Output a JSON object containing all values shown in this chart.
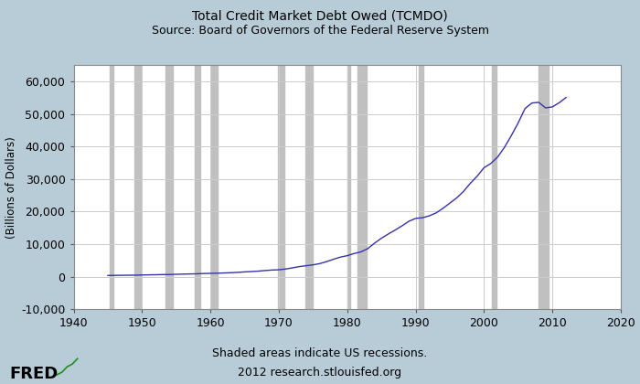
{
  "title_line1": "Total Credit Market Debt Owed (TCMDO)",
  "title_line2": "Source: Board of Governors of the Federal Reserve System",
  "ylabel": "(Billions of Dollars)",
  "xlabel_bottom1": "Shaded areas indicate US recessions.",
  "xlabel_bottom2": "2012 research.stlouisfed.org",
  "fred_label": "FRED",
  "background_outer": "#b8ccd8",
  "background_inner": "#ffffff",
  "line_color": "#3333aa",
  "recession_color": "#c0c0c0",
  "xlim": [
    1940,
    2020
  ],
  "ylim": [
    -10000,
    65000
  ],
  "xticks": [
    1940,
    1950,
    1960,
    1970,
    1980,
    1990,
    2000,
    2010,
    2020
  ],
  "yticks": [
    -10000,
    0,
    10000,
    20000,
    30000,
    40000,
    50000,
    60000
  ],
  "ytick_labels": [
    "-10,000",
    "0",
    "10,000",
    "20,000",
    "30,000",
    "40,000",
    "50,000",
    "60,000"
  ],
  "recessions": [
    [
      1945.33,
      1945.83
    ],
    [
      1948.83,
      1949.83
    ],
    [
      1953.5,
      1954.5
    ],
    [
      1957.67,
      1958.5
    ],
    [
      1960.17,
      1961.0
    ],
    [
      1969.83,
      1970.83
    ],
    [
      1973.83,
      1975.0
    ],
    [
      1980.0,
      1980.5
    ],
    [
      1981.5,
      1982.83
    ],
    [
      1990.5,
      1991.17
    ],
    [
      2001.17,
      2001.83
    ],
    [
      2007.92,
      2009.5
    ]
  ],
  "data_x": [
    1945,
    1946,
    1947,
    1948,
    1949,
    1950,
    1951,
    1952,
    1953,
    1954,
    1955,
    1956,
    1957,
    1958,
    1959,
    1960,
    1961,
    1962,
    1963,
    1964,
    1965,
    1966,
    1967,
    1968,
    1969,
    1970,
    1971,
    1972,
    1973,
    1974,
    1975,
    1976,
    1977,
    1978,
    1979,
    1980,
    1981,
    1982,
    1983,
    1984,
    1985,
    1986,
    1987,
    1988,
    1989,
    1990,
    1991,
    1992,
    1993,
    1994,
    1995,
    1996,
    1997,
    1998,
    1999,
    2000,
    2001,
    2002,
    2003,
    2004,
    2005,
    2006,
    2007,
    2008,
    2009,
    2010,
    2011,
    2012
  ],
  "data_y": [
    355,
    370,
    400,
    430,
    450,
    500,
    540,
    580,
    620,
    640,
    720,
    770,
    820,
    870,
    960,
    1000,
    1050,
    1120,
    1200,
    1310,
    1450,
    1560,
    1680,
    1870,
    2020,
    2100,
    2340,
    2680,
    3080,
    3350,
    3620,
    4010,
    4620,
    5340,
    6000,
    6440,
    7100,
    7600,
    8600,
    10300,
    11800,
    13100,
    14300,
    15600,
    17000,
    17900,
    18100,
    18700,
    19600,
    21000,
    22600,
    24200,
    26200,
    28700,
    30900,
    33500,
    34800,
    36800,
    39800,
    43400,
    47300,
    51700,
    53400,
    53600,
    51900,
    52200,
    53500,
    55100
  ]
}
